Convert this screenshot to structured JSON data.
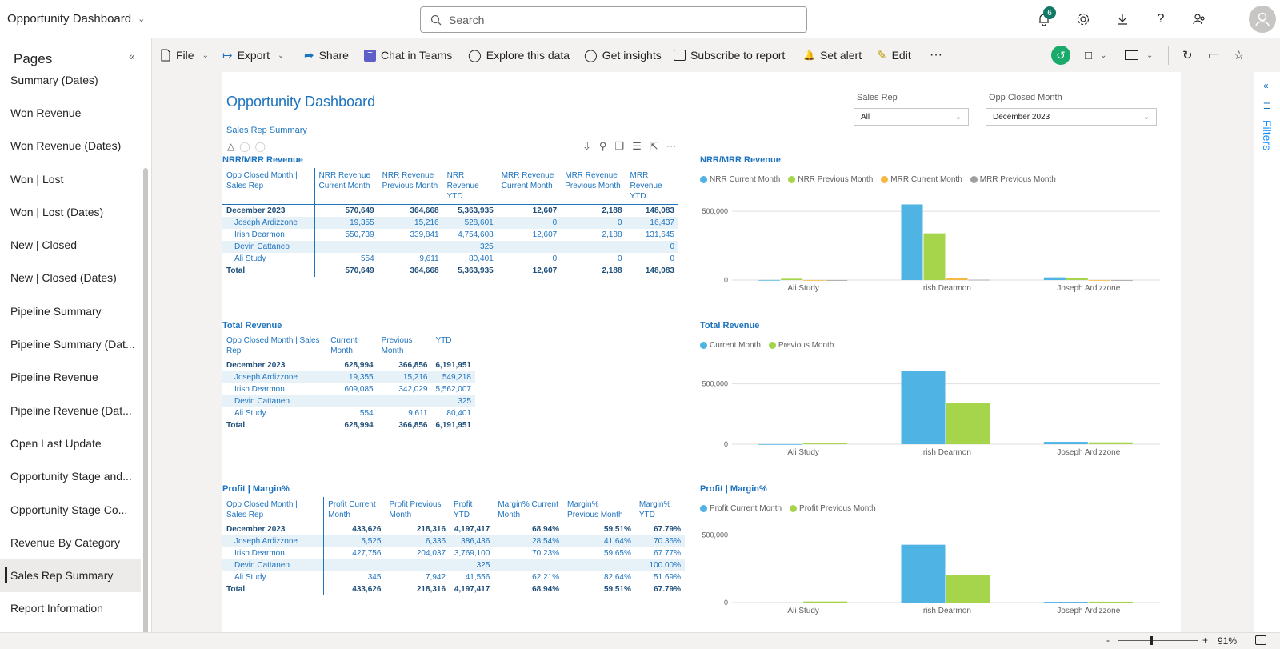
{
  "app": {
    "title": "Opportunity Dashboard",
    "search_placeholder": "Search",
    "notifications": "6"
  },
  "pages": {
    "header": "Pages",
    "items": [
      {
        "label": "Summary (Dates)",
        "selected": false
      },
      {
        "label": "Won Revenue",
        "selected": false
      },
      {
        "label": "Won Revenue (Dates)",
        "selected": false
      },
      {
        "label": "Won | Lost",
        "selected": false
      },
      {
        "label": "Won | Lost (Dates)",
        "selected": false
      },
      {
        "label": "New | Closed",
        "selected": false
      },
      {
        "label": "New | Closed (Dates)",
        "selected": false
      },
      {
        "label": "Pipeline Summary",
        "selected": false
      },
      {
        "label": "Pipeline Summary (Dat...",
        "selected": false
      },
      {
        "label": "Pipeline Revenue",
        "selected": false
      },
      {
        "label": "Pipeline Revenue (Dat...",
        "selected": false
      },
      {
        "label": "Open Last Update",
        "selected": false
      },
      {
        "label": "Opportunity Stage and...",
        "selected": false
      },
      {
        "label": "Opportunity Stage Co...",
        "selected": false
      },
      {
        "label": "Revenue By Category",
        "selected": false
      },
      {
        "label": "Sales Rep Summary",
        "selected": true
      },
      {
        "label": "Report Information",
        "selected": false
      }
    ]
  },
  "toolbar": {
    "file": "File",
    "export": "Export",
    "share": "Share",
    "chat": "Chat in Teams",
    "explore": "Explore this data",
    "insights": "Get insights",
    "subscribe": "Subscribe to report",
    "alert": "Set alert",
    "edit": "Edit",
    "more": "···"
  },
  "report": {
    "title": "Opportunity Dashboard",
    "subtitle": "Sales Rep Summary",
    "slicers": [
      {
        "label": "Sales Rep",
        "value": "All"
      },
      {
        "label": "Opp Closed Month",
        "value": "December 2023"
      }
    ]
  },
  "tables": [
    {
      "title": "NRR/MRR Revenue",
      "headers": [
        "Opp Closed Month | Sales Rep",
        "NRR Revenue Current Month",
        "NRR Revenue Previous Month",
        "NRR Revenue YTD",
        "MRR Revenue Current Month",
        "MRR Revenue Previous Month",
        "MRR Revenue YTD"
      ],
      "rows": [
        {
          "type": "grp",
          "cells": [
            "December 2023",
            "570,649",
            "364,668",
            "5,363,935",
            "12,607",
            "2,188",
            "148,083"
          ]
        },
        {
          "type": "child alt",
          "cells": [
            "Joseph Ardizzone",
            "19,355",
            "15,216",
            "528,601",
            "0",
            "0",
            "16,437"
          ]
        },
        {
          "type": "child",
          "cells": [
            "Irish Dearmon",
            "550,739",
            "339,841",
            "4,754,608",
            "12,607",
            "2,188",
            "131,645"
          ]
        },
        {
          "type": "child alt",
          "cells": [
            "Devin Cattaneo",
            "",
            "",
            "325",
            "",
            "",
            "0"
          ]
        },
        {
          "type": "child",
          "cells": [
            "Ali Study",
            "554",
            "9,611",
            "80,401",
            "0",
            "0",
            "0"
          ]
        },
        {
          "type": "tot",
          "cells": [
            "Total",
            "570,649",
            "364,668",
            "5,363,935",
            "12,607",
            "2,188",
            "148,083"
          ]
        }
      ]
    },
    {
      "title": "Total Revenue",
      "headers": [
        "Opp Closed Month | Sales Rep",
        "Current Month",
        "Previous Month",
        "YTD"
      ],
      "rows": [
        {
          "type": "grp",
          "cells": [
            "December 2023",
            "628,994",
            "366,856",
            "6,191,951"
          ]
        },
        {
          "type": "child alt",
          "cells": [
            "Joseph Ardizzone",
            "19,355",
            "15,216",
            "549,218"
          ]
        },
        {
          "type": "child",
          "cells": [
            "Irish Dearmon",
            "609,085",
            "342,029",
            "5,562,007"
          ]
        },
        {
          "type": "child alt",
          "cells": [
            "Devin Cattaneo",
            "",
            "",
            "325"
          ]
        },
        {
          "type": "child",
          "cells": [
            "Ali Study",
            "554",
            "9,611",
            "80,401"
          ]
        },
        {
          "type": "tot",
          "cells": [
            "Total",
            "628,994",
            "366,856",
            "6,191,951"
          ]
        }
      ]
    },
    {
      "title": "Profit | Margin%",
      "headers": [
        "Opp Closed Month | Sales Rep",
        "Profit Current Month",
        "Profit Previous Month",
        "Profit YTD",
        "Margin% Current Month",
        "Margin% Previous Month",
        "Margin% YTD"
      ],
      "rows": [
        {
          "type": "grp",
          "cells": [
            "December 2023",
            "433,626",
            "218,316",
            "4,197,417",
            "68.94%",
            "59.51%",
            "67.79%"
          ]
        },
        {
          "type": "child alt",
          "cells": [
            "Joseph Ardizzone",
            "5,525",
            "6,336",
            "386,436",
            "28.54%",
            "41.64%",
            "70.36%"
          ]
        },
        {
          "type": "child",
          "cells": [
            "Irish Dearmon",
            "427,756",
            "204,037",
            "3,769,100",
            "70.23%",
            "59.65%",
            "67.77%"
          ]
        },
        {
          "type": "child alt",
          "cells": [
            "Devin Cattaneo",
            "",
            "",
            "325",
            "",
            "",
            "100.00%"
          ]
        },
        {
          "type": "child",
          "cells": [
            "Ali Study",
            "345",
            "7,942",
            "41,556",
            "62.21%",
            "82.64%",
            "51.69%"
          ]
        },
        {
          "type": "tot",
          "cells": [
            "Total",
            "433,626",
            "218,316",
            "4,197,417",
            "68.94%",
            "59.51%",
            "67.79%"
          ]
        }
      ]
    }
  ],
  "chart_data": [
    {
      "type": "bar",
      "title": "NRR/MRR Revenue",
      "categories": [
        "Ali Study",
        "Irish Dearmon",
        "Joseph Ardizzone"
      ],
      "series": [
        {
          "name": "NRR Current Month",
          "color": "#4fb3e3",
          "values": [
            554,
            550739,
            19355
          ]
        },
        {
          "name": "NRR Previous Month",
          "color": "#a6d44b",
          "values": [
            9611,
            339841,
            15216
          ]
        },
        {
          "name": "MRR Current Month",
          "color": "#f5b942",
          "values": [
            0,
            12607,
            0
          ]
        },
        {
          "name": "MRR Previous Month",
          "color": "#a19f9d",
          "values": [
            0,
            2188,
            0
          ]
        }
      ],
      "ylim": [
        0,
        600000
      ],
      "yticks": [
        "0",
        "500,000"
      ],
      "ytick_values": [
        0,
        500000
      ],
      "legend": "top-left",
      "grid": true
    },
    {
      "type": "bar",
      "title": "Total Revenue",
      "categories": [
        "Ali Study",
        "Irish Dearmon",
        "Joseph Ardizzone"
      ],
      "series": [
        {
          "name": "Current Month",
          "color": "#4fb3e3",
          "values": [
            554,
            609085,
            19355
          ]
        },
        {
          "name": "Previous Month",
          "color": "#a6d44b",
          "values": [
            9611,
            342029,
            15216
          ]
        }
      ],
      "ylim": [
        0,
        650000
      ],
      "yticks": [
        "0",
        "500,000"
      ],
      "ytick_values": [
        0,
        500000
      ],
      "legend": "top-left",
      "grid": true
    },
    {
      "type": "bar",
      "title": "Profit | Margin%",
      "categories": [
        "Ali Study",
        "Irish Dearmon",
        "Joseph Ardizzone"
      ],
      "series": [
        {
          "name": "Profit Current Month",
          "color": "#4fb3e3",
          "values": [
            345,
            427756,
            5525
          ]
        },
        {
          "name": "Profit Previous Month",
          "color": "#a6d44b",
          "values": [
            7942,
            204037,
            6336
          ]
        }
      ],
      "ylim": [
        0,
        550000
      ],
      "yticks": [
        "0",
        "500,000"
      ],
      "ytick_values": [
        0,
        500000
      ],
      "legend": "top-left",
      "grid": true
    }
  ],
  "filters": {
    "label": "Filters"
  },
  "status": {
    "zoom": "91%",
    "minus": "-",
    "plus": "+"
  }
}
